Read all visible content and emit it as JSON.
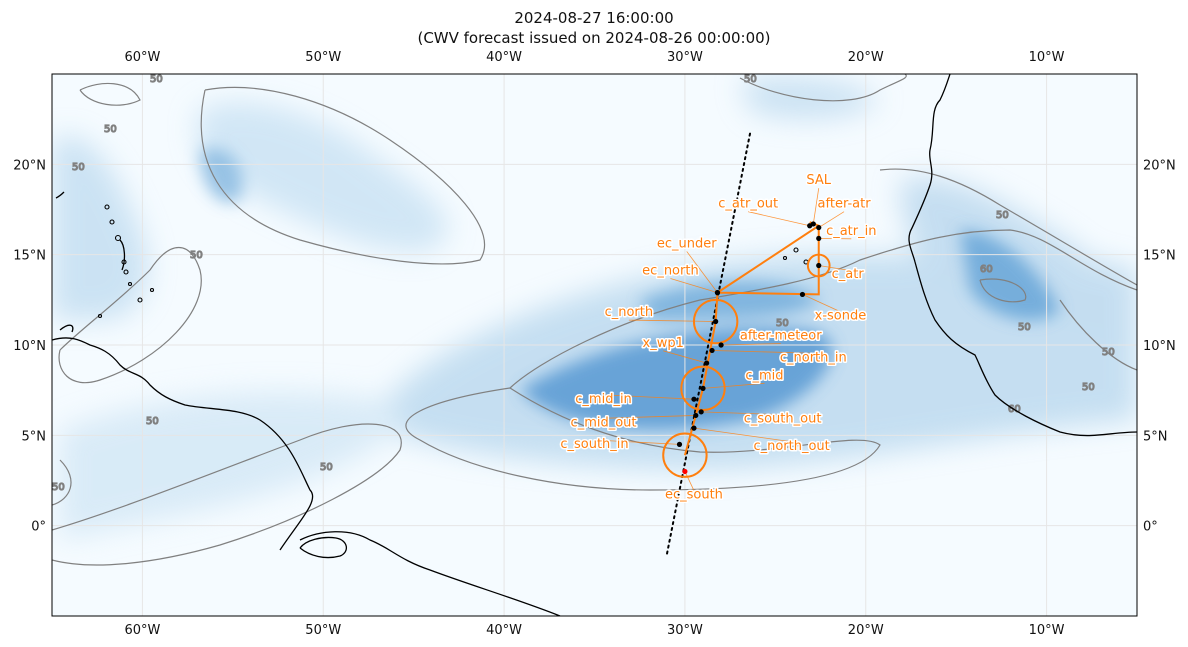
{
  "title": {
    "line1": "2024-08-27 16:00:00",
    "line2": "(CWV forecast issued on 2024-08-26 00:00:00)"
  },
  "map": {
    "lon_range": [
      -65,
      -5
    ],
    "lat_range": [
      -5,
      25
    ],
    "lon_ticks": [
      -60,
      -50,
      -40,
      -30,
      -20,
      -10
    ],
    "lat_ticks": [
      0,
      5,
      10,
      15,
      20
    ],
    "lon_tick_labels": [
      "60°W",
      "50°W",
      "40°W",
      "30°W",
      "20°W",
      "10°W"
    ],
    "lat_tick_labels": [
      "0°",
      "5°N",
      "10°N",
      "15°N",
      "20°N"
    ],
    "colors": {
      "field_low": "#f5fbff",
      "field_high": "#3a86c8",
      "contour": "#808080",
      "coast": "#000000",
      "track": "#ff7f0e",
      "grid": "#e6e6e6"
    },
    "contour_level_label": "50",
    "contour_level_label_alt": "60"
  },
  "satellite_track": [
    [
      -26.4,
      21.7
    ],
    [
      -31.0,
      -1.6
    ]
  ],
  "flight_track": [
    [
      -30.0,
      3.9
    ],
    [
      -29.4,
      6.1
    ],
    [
      -29.0,
      7.6
    ],
    [
      -28.3,
      11.3
    ],
    [
      -28.2,
      12.9
    ],
    [
      -22.6,
      16.6
    ],
    [
      -23.1,
      16.8
    ],
    [
      -22.6,
      16.6
    ],
    [
      -22.6,
      12.8
    ],
    [
      -28.2,
      12.9
    ]
  ],
  "circles": [
    {
      "name": "c_atr",
      "lon": -22.6,
      "lat": 14.4,
      "radius_deg": 0.6
    },
    {
      "name": "c_north",
      "lon": -28.3,
      "lat": 11.3,
      "radius_deg": 1.2
    },
    {
      "name": "c_mid",
      "lon": -29.0,
      "lat": 7.6,
      "radius_deg": 1.2
    },
    {
      "name": "c_south",
      "lon": -30.0,
      "lat": 3.9,
      "radius_deg": 1.2
    }
  ],
  "points": [
    {
      "label": "SAL",
      "lon": -22.9,
      "lat": 16.7,
      "tlon": -22.6,
      "tlat": 18.9,
      "color": "#000000"
    },
    {
      "label": "c_atr_out",
      "lon": -23.1,
      "lat": 16.6,
      "tlon": -26.5,
      "tlat": 17.6,
      "color": "#000000"
    },
    {
      "label": "after-atr",
      "lon": -22.6,
      "lat": 16.5,
      "tlon": -21.2,
      "tlat": 17.6,
      "color": "#000000"
    },
    {
      "label": "c_atr_in",
      "lon": -22.6,
      "lat": 15.9,
      "tlon": -20.8,
      "tlat": 16.1,
      "color": "#000000"
    },
    {
      "label": "c_atr",
      "lon": -22.6,
      "lat": 14.4,
      "tlon": -21.0,
      "tlat": 13.7,
      "color": "#000000"
    },
    {
      "label": "x-sonde",
      "lon": -23.5,
      "lat": 12.8,
      "tlon": -21.4,
      "tlat": 11.4,
      "color": "#000000"
    },
    {
      "label": "ec_under",
      "lon": -28.2,
      "lat": 12.9,
      "tlon": -29.9,
      "tlat": 15.4,
      "color": "#000000"
    },
    {
      "label": "ec_north",
      "lon": -28.2,
      "lat": 12.9,
      "tlon": -30.8,
      "tlat": 13.9,
      "color": "#000000"
    },
    {
      "label": "c_north",
      "lon": -28.3,
      "lat": 11.3,
      "tlon": -33.1,
      "tlat": 11.6,
      "color": "#000000"
    },
    {
      "label": "after-meteor",
      "lon": -28.0,
      "lat": 10.0,
      "tlon": -24.7,
      "tlat": 10.3,
      "color": "#000000"
    },
    {
      "label": "x_wp1",
      "lon": -28.8,
      "lat": 9.0,
      "tlon": -31.2,
      "tlat": 9.9,
      "color": "#000000"
    },
    {
      "label": "c_north_in",
      "lon": -28.5,
      "lat": 9.7,
      "tlon": -22.9,
      "tlat": 9.1,
      "color": "#000000"
    },
    {
      "label": "c_mid",
      "lon": -29.0,
      "lat": 7.6,
      "tlon": -25.6,
      "tlat": 8.1,
      "color": "#000000"
    },
    {
      "label": "c_mid_in",
      "lon": -29.5,
      "lat": 7.0,
      "tlon": -34.5,
      "tlat": 6.8,
      "color": "#000000"
    },
    {
      "label": "c_south_out",
      "lon": -29.1,
      "lat": 6.3,
      "tlon": -24.6,
      "tlat": 5.7,
      "color": "#000000"
    },
    {
      "label": "c_mid_out",
      "lon": -29.4,
      "lat": 6.1,
      "tlon": -34.5,
      "tlat": 5.5,
      "color": "#000000"
    },
    {
      "label": "c_north_out",
      "lon": -29.5,
      "lat": 5.4,
      "tlon": -24.1,
      "tlat": 4.2,
      "color": "#000000"
    },
    {
      "label": "c_south_in",
      "lon": -30.3,
      "lat": 4.5,
      "tlon": -35.0,
      "tlat": 4.3,
      "color": "#000000"
    },
    {
      "label": "ec_south",
      "lon": -30.0,
      "lat": 3.0,
      "tlon": -29.5,
      "tlat": 1.5,
      "color": "#ff0000"
    }
  ]
}
